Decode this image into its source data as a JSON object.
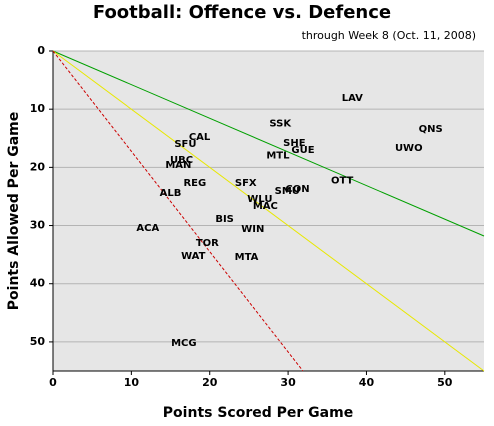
{
  "chart_data": {
    "type": "scatter",
    "title": "Football: Offence vs. Defence",
    "subtitle": "through Week 8 (Oct. 11, 2008)",
    "x_label": "Points Scored Per Game",
    "y_label": "Points Allowed Per Game",
    "labels": [
      "LAV",
      "QNS",
      "UWO",
      "SSK",
      "SHE",
      "GUE",
      "MTL",
      "OTT",
      "SMU",
      "CON",
      "SFX",
      "WLU",
      "MAC",
      "BIS",
      "WIN",
      "MTA",
      "TOR",
      "WAT",
      "ACA",
      "ALB",
      "REG",
      "UBC",
      "MAN",
      "CAL",
      "SFU",
      "MCG"
    ],
    "x": [
      38.2,
      48.2,
      45.4,
      29.0,
      30.8,
      31.9,
      28.7,
      36.9,
      29.9,
      31.2,
      24.6,
      26.4,
      27.1,
      21.9,
      25.5,
      24.7,
      19.7,
      17.9,
      12.1,
      15.0,
      18.1,
      16.4,
      16.0,
      18.7,
      16.9,
      16.7
    ],
    "values": [
      8.1,
      13.4,
      16.7,
      12.5,
      15.8,
      17.0,
      18.0,
      22.3,
      24.1,
      23.7,
      22.7,
      25.4,
      26.6,
      28.9,
      30.6,
      35.4,
      33.0,
      35.2,
      30.4,
      24.4,
      22.7,
      18.7,
      19.6,
      14.8,
      16.0,
      50.2
    ],
    "reference_lines": [
      {
        "color": "#00a000",
        "dashed": false,
        "x": [
          0,
          55
        ],
        "values": [
          0,
          31.8
        ]
      },
      {
        "color": "#e8e800",
        "dashed": false,
        "x": [
          0,
          55
        ],
        "values": [
          0,
          55
        ]
      },
      {
        "color": "#cc0000",
        "dashed": true,
        "x": [
          0,
          31.9
        ],
        "values": [
          0,
          55
        ]
      }
    ],
    "xlim": [
      0,
      55
    ],
    "ylim": [
      55,
      0
    ],
    "xticks": [
      0,
      10,
      20,
      30,
      40,
      50
    ],
    "yticks": [
      0,
      10,
      20,
      30,
      40,
      50
    ],
    "grid": true
  }
}
